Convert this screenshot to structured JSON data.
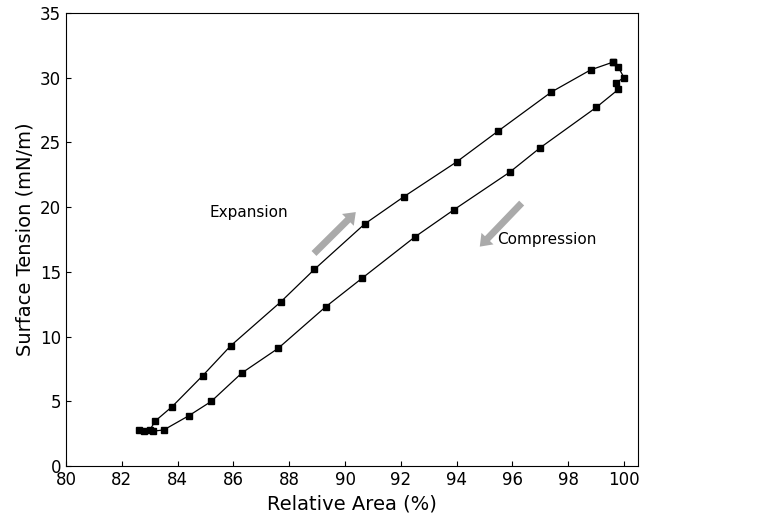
{
  "chart_data": {
    "type": "line",
    "x_label": "Relative Area (%)",
    "y_label": "Surface Tension (mN/m)",
    "x": [
      99.6,
      99.8,
      100.0,
      99.7,
      99.8,
      99.0,
      97.0,
      95.9,
      93.9,
      92.5,
      90.6,
      89.3,
      87.6,
      86.3,
      85.2,
      84.4,
      83.5,
      83.1,
      82.8,
      82.6,
      83.0,
      83.2,
      83.8,
      84.9,
      85.9,
      87.7,
      88.9,
      90.7,
      92.1,
      94.0,
      95.5,
      97.4,
      98.8,
      99.6
    ],
    "values": [
      31.2,
      30.8,
      30.0,
      29.6,
      29.1,
      27.7,
      24.6,
      22.7,
      19.8,
      17.7,
      14.5,
      12.3,
      9.1,
      7.2,
      5.0,
      3.9,
      2.8,
      2.7,
      2.7,
      2.8,
      2.8,
      3.5,
      4.6,
      7.0,
      9.3,
      12.7,
      15.2,
      18.7,
      20.8,
      23.5,
      25.9,
      28.9,
      30.6,
      31.2
    ],
    "color": "#000000",
    "marker": "square",
    "line_style": "solid",
    "xlim": [
      80,
      100.5
    ],
    "xticks": [
      80,
      82,
      84,
      86,
      88,
      90,
      92,
      94,
      96,
      98,
      100
    ],
    "ylim": [
      0,
      35
    ],
    "yticks": [
      0,
      5,
      10,
      15,
      20,
      25,
      30,
      35
    ],
    "annotations": [
      "Expansion",
      "Compression"
    ],
    "grid": false
  }
}
